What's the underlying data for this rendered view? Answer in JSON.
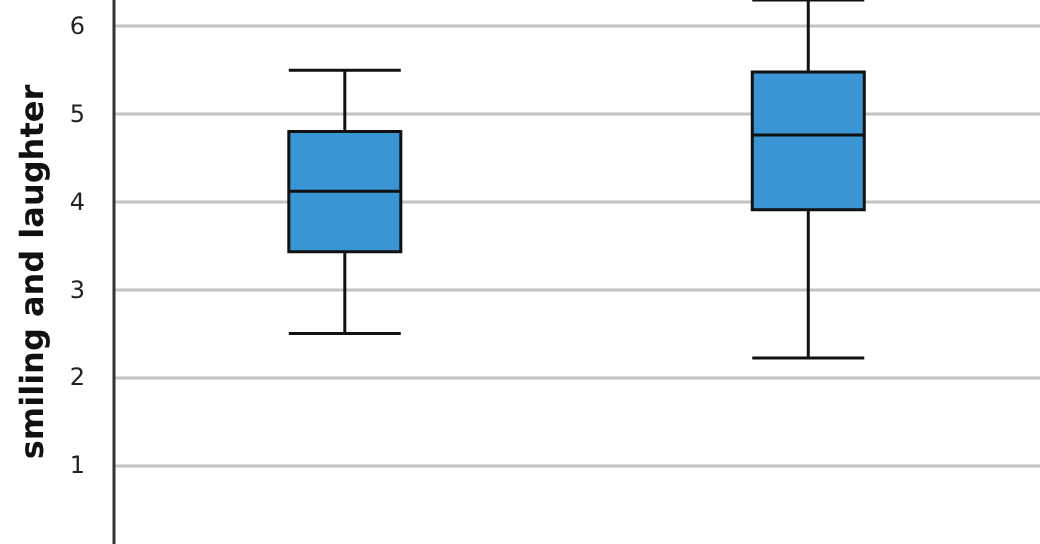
{
  "chart_data": {
    "type": "box",
    "ylabel": "smiling and laughter",
    "categories": [
      null,
      null
    ],
    "boxes": [
      {
        "low": 2.5,
        "q1": 3.43,
        "median": 4.12,
        "q3": 4.8,
        "high": 5.5
      },
      {
        "low": 2.22,
        "q1": 3.91,
        "median": 4.76,
        "q3": 5.48,
        "high": 6.3
      }
    ],
    "color": "#3a95d4",
    "ylim": [
      0.1,
      6.3
    ],
    "yticks": [
      1,
      2,
      3,
      4,
      5,
      6
    ],
    "grid": "y",
    "tick_labels": "y"
  }
}
